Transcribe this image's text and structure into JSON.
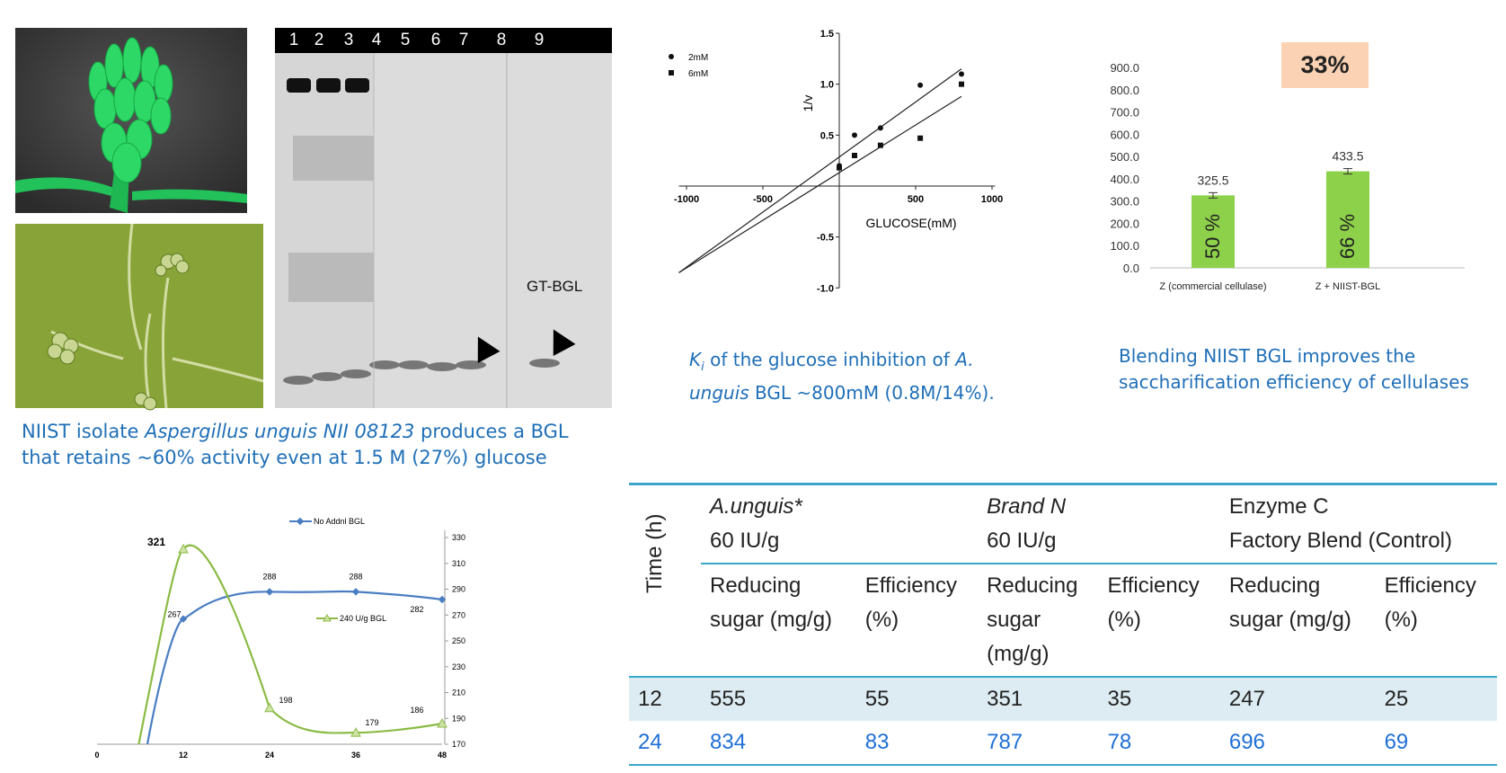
{
  "gel": {
    "lanes": [
      "1",
      "2",
      "3",
      "4",
      "5",
      "6",
      "7",
      "8",
      "9"
    ],
    "label": "GT-BGL"
  },
  "captions": {
    "gel_line1_pre": "NIIST isolate ",
    "gel_line1_species": "Aspergillus unguis NII 08123",
    "gel_line1_post": " produces a BGL",
    "gel_line2": "that retains ~60% activity even at 1.5 M (27%) glucose",
    "ki_k": "K",
    "ki_sub": "i",
    "ki_text1": " of the glucose inhibition of ",
    "ki_species1": "A.",
    "ki_species2": "unguis",
    "ki_text2": " BGL ~800mM (0.8M/14%).",
    "blend": "Blending NIIST BGL improves the saccharification efficiency of cellulases"
  },
  "badge": "33%",
  "chart_data": [
    {
      "type": "scatter",
      "xlabel": "GLUCOSE(mM)",
      "ylabel": "1/v",
      "xlim": [
        -1000,
        1000
      ],
      "ylim": [
        -1.0,
        1.5
      ],
      "xticks": [
        "-1000",
        "-500",
        "500",
        "1000"
      ],
      "yticks": [
        "1.5",
        "1.0",
        "0.5",
        "-0.5",
        "-1.0"
      ],
      "series": [
        {
          "name": "2mM",
          "marker": "circle",
          "x": [
            0,
            100,
            270,
            530,
            800
          ],
          "y": [
            0.2,
            0.5,
            0.57,
            0.99,
            1.1
          ]
        },
        {
          "name": "6mM",
          "marker": "square",
          "x": [
            0,
            100,
            270,
            530,
            800
          ],
          "y": [
            0.18,
            0.3,
            0.4,
            0.47,
            1.0
          ]
        }
      ],
      "fit_lines": [
        {
          "from": [
            -1050,
            -0.85
          ],
          "to": [
            800,
            1.15
          ]
        },
        {
          "from": [
            -1050,
            -0.85
          ],
          "to": [
            800,
            0.88
          ]
        }
      ]
    },
    {
      "type": "bar",
      "categories": [
        "Z (commercial cellulase)",
        "Z + NIIST-BGL"
      ],
      "values": [
        325.5,
        433.5
      ],
      "value_labels": [
        "325.5",
        "433.5"
      ],
      "bar_text": [
        "50 %",
        "66 %"
      ],
      "ylim": [
        0,
        900
      ],
      "yticks": [
        "900.0",
        "800.0",
        "700.0",
        "600.0",
        "500.0",
        "400.0",
        "300.0",
        "200.0",
        "100.0",
        "0.0"
      ],
      "color": "#8dd04a"
    },
    {
      "type": "line",
      "x": [
        6,
        12,
        24,
        36,
        48
      ],
      "xticks": [
        "0",
        "12",
        "24",
        "36",
        "48"
      ],
      "yticks": [
        "330",
        "310",
        "290",
        "270",
        "250",
        "230",
        "210",
        "190",
        "170"
      ],
      "ylim": [
        170,
        330
      ],
      "series": [
        {
          "name": "No Addnl BGL",
          "color": "#4a7ec2",
          "x": [
            7,
            12,
            24,
            36,
            48
          ],
          "y": [
            170,
            267,
            288,
            288,
            282
          ],
          "labels": [
            "",
            "267",
            "288",
            "288",
            "282"
          ]
        },
        {
          "name": "240 U/g BGL",
          "color": "#8bbb45",
          "x": [
            6,
            12,
            24,
            36,
            48
          ],
          "y": [
            170,
            321,
            198,
            179,
            186
          ],
          "labels": [
            "",
            "321",
            "198",
            "179",
            "186"
          ]
        }
      ]
    }
  ],
  "table": {
    "time_header": "Time (h)",
    "groups": [
      {
        "name": "A.unguis*",
        "dose": "60 IU/g"
      },
      {
        "name": "Brand N",
        "dose": "60 IU/g"
      },
      {
        "name": "Enzyme C",
        "dose": "Factory Blend (Control)"
      }
    ],
    "sub_headers": {
      "rs1": "Reducing",
      "rs1b": "sugar (mg/g)",
      "ef1": "Efficiency",
      "ef1b": "(%)",
      "rs2": "Reducing",
      "rs2b": "sugar",
      "rs2c": "(mg/g)",
      "ef2": "Efficiency",
      "ef2b": "(%)",
      "rs3": "Reducing",
      "rs3b": "sugar (mg/g)",
      "ef3": "Efficiency",
      "ef3b": "(%)"
    },
    "rows": [
      {
        "time": "12",
        "v": [
          "555",
          "55",
          "351",
          "35",
          "247",
          "25"
        ]
      },
      {
        "time": "24",
        "v": [
          "834",
          "83",
          "787",
          "78",
          "696",
          "69"
        ]
      }
    ]
  }
}
